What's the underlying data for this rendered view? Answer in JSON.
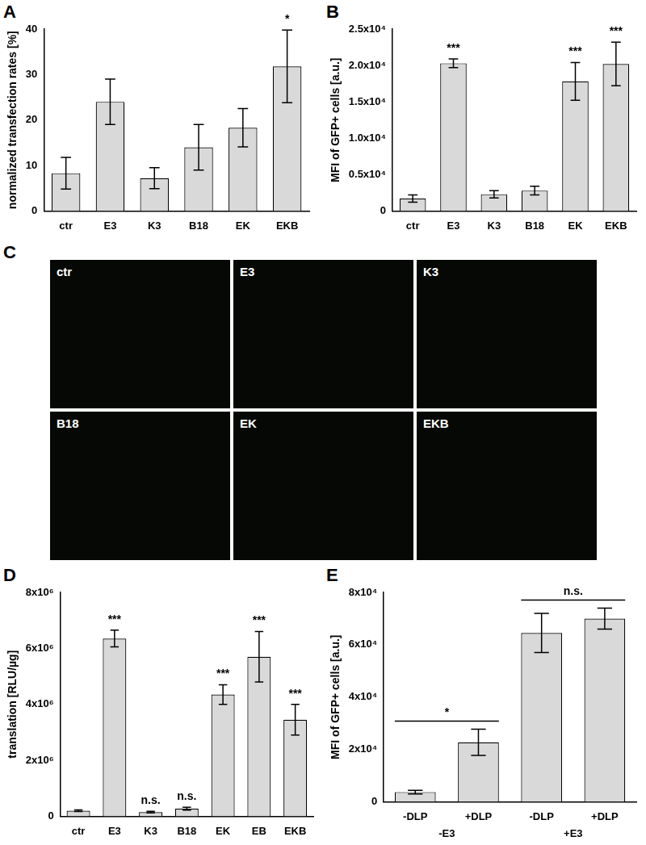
{
  "chart_data": [
    {
      "panel": "A",
      "type": "bar",
      "categories": [
        "ctr",
        "E3",
        "K3",
        "B18",
        "EK",
        "EKB"
      ],
      "values": [
        8.3,
        24,
        7.2,
        14,
        18.3,
        31.8
      ],
      "errors": [
        3.5,
        5,
        2.3,
        5,
        4.2,
        8
      ],
      "annotations": [
        null,
        null,
        null,
        null,
        null,
        "*"
      ],
      "y_label": "normalized transfection rates [%]",
      "color": "#d9d9d9",
      "ylim": [
        0,
        40
      ],
      "yticks": [
        0,
        10,
        20,
        30,
        40
      ],
      "grid": false
    },
    {
      "panel": "B",
      "type": "bar",
      "categories": [
        "ctr",
        "E3",
        "K3",
        "B18",
        "EK",
        "EKB"
      ],
      "values": [
        1700,
        20300,
        2300,
        2800,
        17800,
        20200
      ],
      "errors": [
        500,
        600,
        500,
        600,
        2600,
        3000
      ],
      "annotations": [
        null,
        "***",
        null,
        null,
        "***",
        "***"
      ],
      "y_label": "MFI of GFP+ cells [a.u.]",
      "color": "#d9d9d9",
      "ylim": [
        0,
        25000
      ],
      "yticks": [
        0,
        {
          "value": 5000,
          "label": "0.5x10⁴"
        },
        {
          "value": 10000,
          "label": "1.0x10⁴"
        },
        {
          "value": 15000,
          "label": "1.5x10⁴"
        },
        {
          "value": 20000,
          "label": "2.0x10⁴"
        },
        {
          "value": 25000,
          "label": "2.5x10⁴"
        }
      ],
      "grid": false
    },
    {
      "panel": "C",
      "type": "images",
      "labels": [
        "ctr",
        "E3",
        "K3",
        "B18",
        "EK",
        "EKB"
      ]
    },
    {
      "panel": "D",
      "type": "bar",
      "categories": [
        "ctr",
        "E3",
        "K3",
        "B18",
        "EK",
        "EB",
        "EKB"
      ],
      "values": [
        200000,
        6350000,
        150000,
        270000,
        4350000,
        5700000,
        3450000
      ],
      "errors": [
        30000,
        300000,
        30000,
        50000,
        350000,
        900000,
        550000
      ],
      "annotations": [
        null,
        "***",
        "n.s.",
        "n.s.",
        "***",
        "***",
        "***"
      ],
      "y_label": "translation [RLU/µg]",
      "color": "#d9d9d9",
      "ylim": [
        0,
        8000000
      ],
      "yticks": [
        0,
        {
          "value": 2000000,
          "label": "2x10⁶"
        },
        {
          "value": 4000000,
          "label": "4x10⁶"
        },
        {
          "value": 6000000,
          "label": "6x10⁶"
        },
        {
          "value": 8000000,
          "label": "8x10⁶"
        }
      ],
      "grid": false
    },
    {
      "panel": "E",
      "type": "bar",
      "categories": [
        "-DLP",
        "+DLP",
        "-DLP",
        "+DLP"
      ],
      "values": [
        3700,
        22700,
        64500,
        70000
      ],
      "errors": [
        700,
        5000,
        7500,
        4000
      ],
      "groups": [
        {
          "label": "-E3",
          "members": 2
        },
        {
          "label": "+E3",
          "members": 2
        }
      ],
      "brackets": [
        {
          "label": "*",
          "from": 0,
          "to": 1
        },
        {
          "label": "n.s.",
          "from": 2,
          "to": 3
        }
      ],
      "y_label": "MFI of GFP+ cells [a.u.]",
      "color": "#d9d9d9",
      "ylim": [
        0,
        80000
      ],
      "yticks": [
        0,
        {
          "value": 20000,
          "label": "2x10⁴"
        },
        {
          "value": 40000,
          "label": "4x10⁴"
        },
        {
          "value": 60000,
          "label": "6x10⁴"
        },
        {
          "value": 80000,
          "label": "8x10⁴"
        }
      ],
      "grid": false
    }
  ]
}
